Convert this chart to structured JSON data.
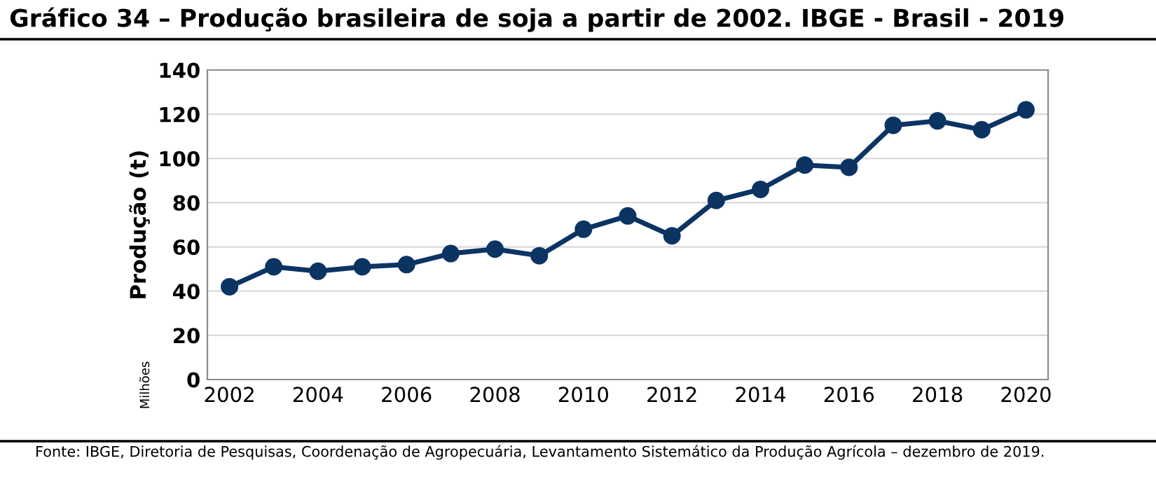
{
  "chart_data": {
    "type": "line",
    "title": "Gráfico 34 – Produção brasileira de soja a partir de 2002. IBGE - Brasil - 2019",
    "ylabel": "Produção (t)",
    "annotations": [
      "Milhões",
      "Fonte: IBGE, Diretoria de Pesquisas, Coordenação de Agropecuária, Levantamento Sistemático da Produção Agrícola – dezembro de 2019."
    ],
    "x": [
      2002,
      2003,
      2004,
      2005,
      2006,
      2007,
      2008,
      2009,
      2010,
      2011,
      2012,
      2013,
      2014,
      2015,
      2016,
      2017,
      2018,
      2019,
      2020
    ],
    "series": [
      {
        "color": "#0b3463",
        "values": [
          42,
          51,
          49,
          51,
          52,
          57,
          59,
          56,
          68,
          74,
          65,
          81,
          86,
          97,
          96,
          115,
          117,
          113,
          122
        ]
      }
    ],
    "xlim": [
      2001.5,
      2020.5
    ],
    "xticks": [
      2002,
      2004,
      2006,
      2008,
      2010,
      2012,
      2014,
      2016,
      2018,
      2020
    ],
    "ylim": [
      0,
      140
    ],
    "yticks": [
      0,
      20,
      40,
      60,
      80,
      100,
      120,
      140
    ],
    "grid": "y",
    "marker": "circle",
    "line_style": "solid",
    "legend": false
  }
}
